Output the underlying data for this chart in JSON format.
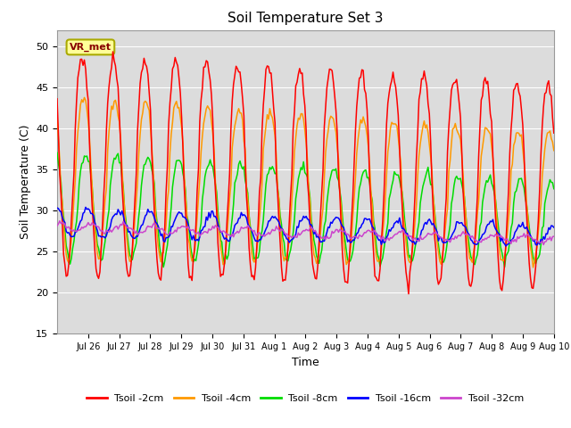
{
  "title": "Soil Temperature Set 3",
  "xlabel": "Time",
  "ylabel": "Soil Temperature (C)",
  "ylim": [
    15,
    52
  ],
  "yticks": [
    15,
    20,
    25,
    30,
    35,
    40,
    45,
    50
  ],
  "colors": {
    "Tsoil -2cm": "#ff0000",
    "Tsoil -4cm": "#ff9900",
    "Tsoil -8cm": "#00dd00",
    "Tsoil -16cm": "#0000ff",
    "Tsoil -32cm": "#cc44cc"
  },
  "annotation_text": "VR_met",
  "bg_color": "#dcdcdc",
  "grid_color": "#ffffff",
  "tick_labels": [
    "Jul 26",
    "Jul 27",
    "Jul 28",
    "Jul 29",
    "Jul 30",
    "Jul 31",
    "Aug 1",
    "Aug 2",
    "Aug 3",
    "Aug 4",
    "Aug 5",
    "Aug 6",
    "Aug 7",
    "Aug 8",
    "Aug 9",
    "Aug 10"
  ]
}
